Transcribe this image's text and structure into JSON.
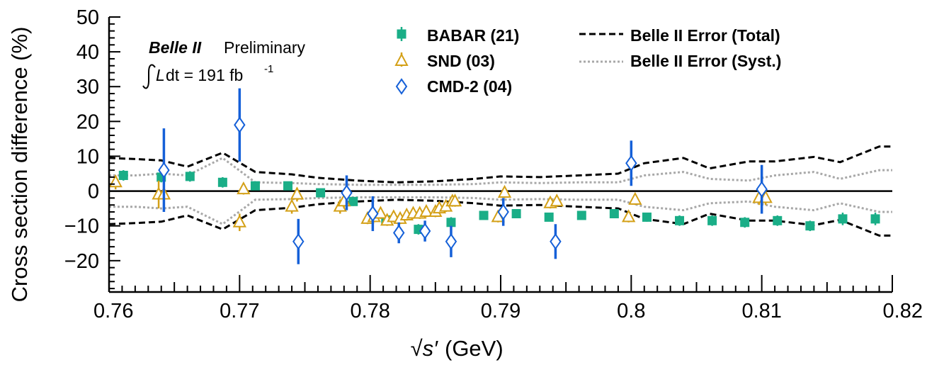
{
  "chart_data": {
    "type": "scatter",
    "xlabel": "(GeV)",
    "xlabel_symbol": "√s′",
    "ylabel": "Cross section difference (%)",
    "xlim": [
      0.76,
      0.82
    ],
    "ylim": [
      -29,
      50
    ],
    "x_ticks": [
      "0.76",
      "0.77",
      "0.78",
      "0.79",
      "0.8",
      "0.81",
      "0.82"
    ],
    "x_tick_values": [
      0.76,
      0.77,
      0.78,
      0.79,
      0.8,
      0.81,
      0.82
    ],
    "y_ticks": [
      "50",
      "40",
      "30",
      "20",
      "10",
      "0",
      "−10",
      "−20"
    ],
    "y_tick_values": [
      50,
      40,
      30,
      20,
      10,
      0,
      -10,
      -20
    ],
    "grid": false,
    "zero_line": true,
    "annotation": {
      "experiment": "Belle II",
      "status": "Preliminary",
      "lumi_prefix": "L",
      "lumi_text": "dt = 191 fb",
      "lumi_exp": "-1"
    },
    "series": [
      {
        "name": "BABAR (21)",
        "marker": "filled-square",
        "color": "#1aae87",
        "x": [
          0.7611,
          0.764,
          0.7662,
          0.7687,
          0.7712,
          0.7737,
          0.7762,
          0.7787,
          0.7812,
          0.7837,
          0.7862,
          0.7887,
          0.7912,
          0.7937,
          0.7962,
          0.7987,
          0.8012,
          0.8037,
          0.8062,
          0.8087,
          0.8112,
          0.8137,
          0.8162,
          0.8187
        ],
        "y": [
          4.5,
          4.0,
          4.2,
          2.5,
          1.5,
          1.5,
          -0.5,
          -3,
          -8.3,
          -11,
          -9,
          -7,
          -6.5,
          -7.5,
          -7,
          -6.5,
          -7.5,
          -8.5,
          -8.5,
          -9,
          -8.5,
          -10,
          -8,
          -8
        ],
        "err": [
          1.5,
          1.5,
          1.5,
          1.5,
          1.2,
          1.2,
          1.2,
          1.3,
          1.3,
          1.5,
          1.5,
          1.2,
          1.2,
          1.2,
          1.2,
          1.2,
          1.3,
          1.5,
          1.5,
          1.5,
          1.5,
          1.5,
          1.8,
          1.8
        ]
      },
      {
        "name": "SND (03)",
        "marker": "open-triangle",
        "color": "#d4a017",
        "x": [
          0.7605,
          0.7638,
          0.7642,
          0.77,
          0.7703,
          0.774,
          0.7744,
          0.7777,
          0.778,
          0.7798,
          0.7803,
          0.7808,
          0.7813,
          0.7818,
          0.7823,
          0.7828,
          0.7833,
          0.7838,
          0.7843,
          0.785,
          0.7853,
          0.7858,
          0.7863,
          0.7865,
          0.7898,
          0.7903,
          0.7938,
          0.7943,
          0.7998,
          0.8003,
          0.8098,
          0.8103
        ],
        "y": [
          2.5,
          -1,
          -1,
          -9,
          0.5,
          -4.5,
          -1,
          -4.5,
          -3,
          -8,
          -7.5,
          -6.5,
          -8.5,
          -7.5,
          -8,
          -7,
          -6.5,
          -6.5,
          -6,
          -6,
          -5,
          -4.5,
          -3,
          -3,
          -7.5,
          -0.5,
          -3.5,
          -3,
          -7.5,
          -2.5,
          -2,
          -2
        ],
        "err": [
          2.0,
          4.0,
          2.0,
          2.5,
          1.5,
          2.0,
          2.0,
          2.0,
          2.0,
          1.5,
          1.5,
          1.5,
          1.5,
          1.5,
          1.5,
          1.5,
          1.5,
          1.5,
          1.5,
          1.5,
          1.5,
          1.5,
          1.5,
          1.5,
          1.5,
          1.5,
          1.5,
          1.5,
          1.5,
          1.5,
          2.0,
          2.0
        ]
      },
      {
        "name": "CMD-2 (04)",
        "marker": "open-diamond",
        "color": "#1560d8",
        "x": [
          0.7642,
          0.77,
          0.7745,
          0.7782,
          0.7802,
          0.7822,
          0.7842,
          0.7862,
          0.7902,
          0.7942,
          0.8,
          0.81
        ],
        "y": [
          6,
          19,
          -14.5,
          -0.5,
          -6.5,
          -12,
          -11.5,
          -14.5,
          -6,
          -14.5,
          8,
          0.5
        ],
        "err": [
          12,
          10.5,
          6.5,
          5,
          5,
          3,
          3,
          4.5,
          4,
          5,
          6.5,
          7
        ]
      },
      {
        "name": "Belle II Error (Total)",
        "style": "dashed",
        "color": "#000000",
        "x": [
          0.76,
          0.762,
          0.764,
          0.766,
          0.7687,
          0.7712,
          0.774,
          0.776,
          0.779,
          0.782,
          0.785,
          0.788,
          0.79,
          0.793,
          0.796,
          0.799,
          0.801,
          0.804,
          0.806,
          0.809,
          0.811,
          0.814,
          0.816,
          0.819,
          0.82
        ],
        "y": [
          9.5,
          9.2,
          8.8,
          7.0,
          11.0,
          5.5,
          4.8,
          3.8,
          3.0,
          2.5,
          2.8,
          3.5,
          4.2,
          4.0,
          4.5,
          5.0,
          8.0,
          9.5,
          6.5,
          8.5,
          8.5,
          9.8,
          8.3,
          12.8,
          12.8
        ]
      },
      {
        "name": "Belle II Error (Syst.)",
        "style": "dotted",
        "color": "#a8a8a8",
        "x": [
          0.76,
          0.762,
          0.764,
          0.766,
          0.7687,
          0.7712,
          0.774,
          0.776,
          0.779,
          0.782,
          0.785,
          0.788,
          0.79,
          0.793,
          0.796,
          0.799,
          0.801,
          0.804,
          0.806,
          0.809,
          0.811,
          0.814,
          0.816,
          0.819,
          0.82
        ],
        "y": [
          4.5,
          4.5,
          5.0,
          4.5,
          9.5,
          2.5,
          2.3,
          2.0,
          1.8,
          1.8,
          1.8,
          2.0,
          2.5,
          2.3,
          2.5,
          2.5,
          4.5,
          5.5,
          3.5,
          3.0,
          4.5,
          5.5,
          3.5,
          6.0,
          6.0
        ]
      }
    ]
  }
}
